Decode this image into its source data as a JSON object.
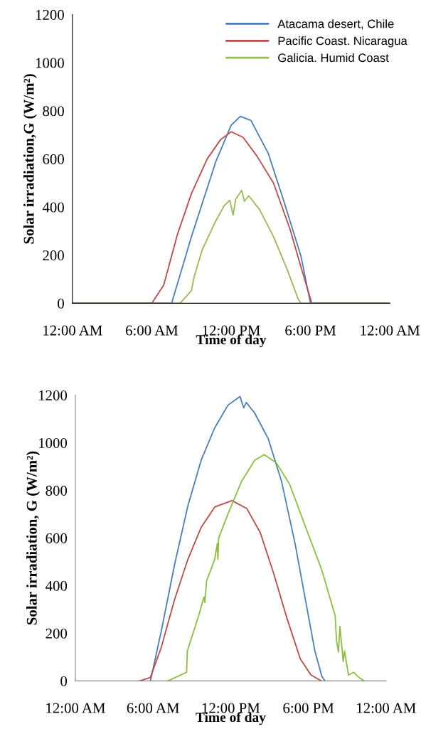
{
  "chart_data": [
    {
      "type": "line",
      "xlabel": "Time of day",
      "ylabel": "Solar irradiation,G (W/m²)",
      "xlim": [
        0,
        24
      ],
      "ylim": [
        0,
        1200
      ],
      "xticks": [
        {
          "value": 0,
          "label": "12:00 AM"
        },
        {
          "value": 6,
          "label": "6:00 AM"
        },
        {
          "value": 12,
          "label": "12:00 PM"
        },
        {
          "value": 18,
          "label": "6:00 PM"
        },
        {
          "value": 24,
          "label": "12:00 AM"
        }
      ],
      "yticks": [
        0,
        200,
        400,
        600,
        800,
        1000,
        1200
      ],
      "legend": "top right",
      "grid": false,
      "marker": "none",
      "line_style": "solid",
      "series": [
        {
          "name": "Atacama desert, Chile",
          "color": "#4a7ebb",
          "x": [
            0,
            7.5,
            9.0,
            10.85,
            12.0,
            12.7,
            13.5,
            14.8,
            16.0,
            17.27,
            18.0,
            24
          ],
          "values": [
            0,
            0,
            277,
            590,
            740,
            777,
            760,
            624,
            422,
            198,
            0,
            0
          ]
        },
        {
          "name": "Pacific Coast. Nicaragua",
          "color": "#be4b48",
          "x": [
            0,
            6.0,
            6.9,
            7.95,
            9.0,
            10.2,
            11.2,
            12.0,
            12.9,
            13.95,
            15.2,
            16.44,
            17.27,
            18.1,
            24
          ],
          "values": [
            0,
            0,
            75,
            288,
            456,
            601,
            680,
            713,
            690,
            612,
            500,
            310,
            153,
            0,
            0
          ]
        },
        {
          "name": "Galicia. Humid Coast",
          "color": "#98b954",
          "x": [
            0,
            8.15,
            9.0,
            9.2,
            9.8,
            10.75,
            11.47,
            11.9,
            12.15,
            12.35,
            12.8,
            13.0,
            13.33,
            14.16,
            15.2,
            16.23,
            17.06,
            17.27,
            24
          ],
          "values": [
            0,
            0,
            53,
            109,
            220,
            333,
            405,
            428,
            366,
            433,
            469,
            424,
            447,
            389,
            277,
            142,
            19,
            0,
            0
          ]
        }
      ]
    },
    {
      "type": "line",
      "xlabel": "Time of day",
      "ylabel": "Solar irradiation, G (W/m²)",
      "xlim": [
        0,
        24
      ],
      "ylim": [
        0,
        1200
      ],
      "xticks": [
        {
          "value": 0,
          "label": "12:00 AM"
        },
        {
          "value": 6,
          "label": "6:00 AM"
        },
        {
          "value": 12,
          "label": "12:00 PM"
        },
        {
          "value": 18,
          "label": "6:00 PM"
        },
        {
          "value": 24,
          "label": "12:00 AM"
        }
      ],
      "yticks": [
        0,
        200,
        400,
        600,
        800,
        1000,
        1200
      ],
      "grid": false,
      "marker": "none",
      "line_style": "solid",
      "series": [
        {
          "color": "#4a7ebb",
          "x": [
            5.8,
            6.62,
            7.66,
            8.69,
            9.72,
            10.76,
            11.79,
            12.72,
            13.0,
            13.2,
            13.86,
            14.9,
            15.93,
            16.97,
            18.0,
            18.5,
            19.04,
            19.28
          ],
          "values": [
            0,
            205,
            487,
            735,
            927,
            1062,
            1158,
            1194,
            1147,
            1169,
            1124,
            1017,
            837,
            577,
            273,
            126,
            19,
            0
          ]
        },
        {
          "color": "#be4b48",
          "x": [
            4.97,
            5.79,
            6.62,
            7.66,
            8.69,
            9.72,
            10.76,
            12.1,
            13.24,
            14.28,
            15.31,
            16.35,
            17.38,
            18.2,
            18.99
          ],
          "values": [
            0,
            14,
            138,
            341,
            510,
            645,
            730,
            757,
            724,
            623,
            453,
            262,
            92,
            25,
            0
          ]
        },
        {
          "color": "#8cbf3f",
          "x": [
            7.14,
            8.59,
            8.65,
            9.52,
            9.93,
            10.0,
            10.14,
            10.76,
            10.97,
            11.01,
            11.07,
            11.79,
            12.83,
            13.86,
            14.59,
            15.52,
            16.55,
            17.79,
            19.04,
            19.35,
            20.07,
            20.17,
            20.32,
            20.44,
            20.69,
            20.79,
            21.1,
            21.5,
            21.92,
            22.3
          ],
          "values": [
            0,
            36,
            126,
            273,
            352,
            329,
            420,
            510,
            577,
            510,
            600,
            701,
            837,
            927,
            950,
            916,
            826,
            645,
            465,
            408,
            273,
            171,
            121,
            228,
            81,
            126,
            25,
            36,
            14,
            0
          ]
        }
      ]
    }
  ]
}
